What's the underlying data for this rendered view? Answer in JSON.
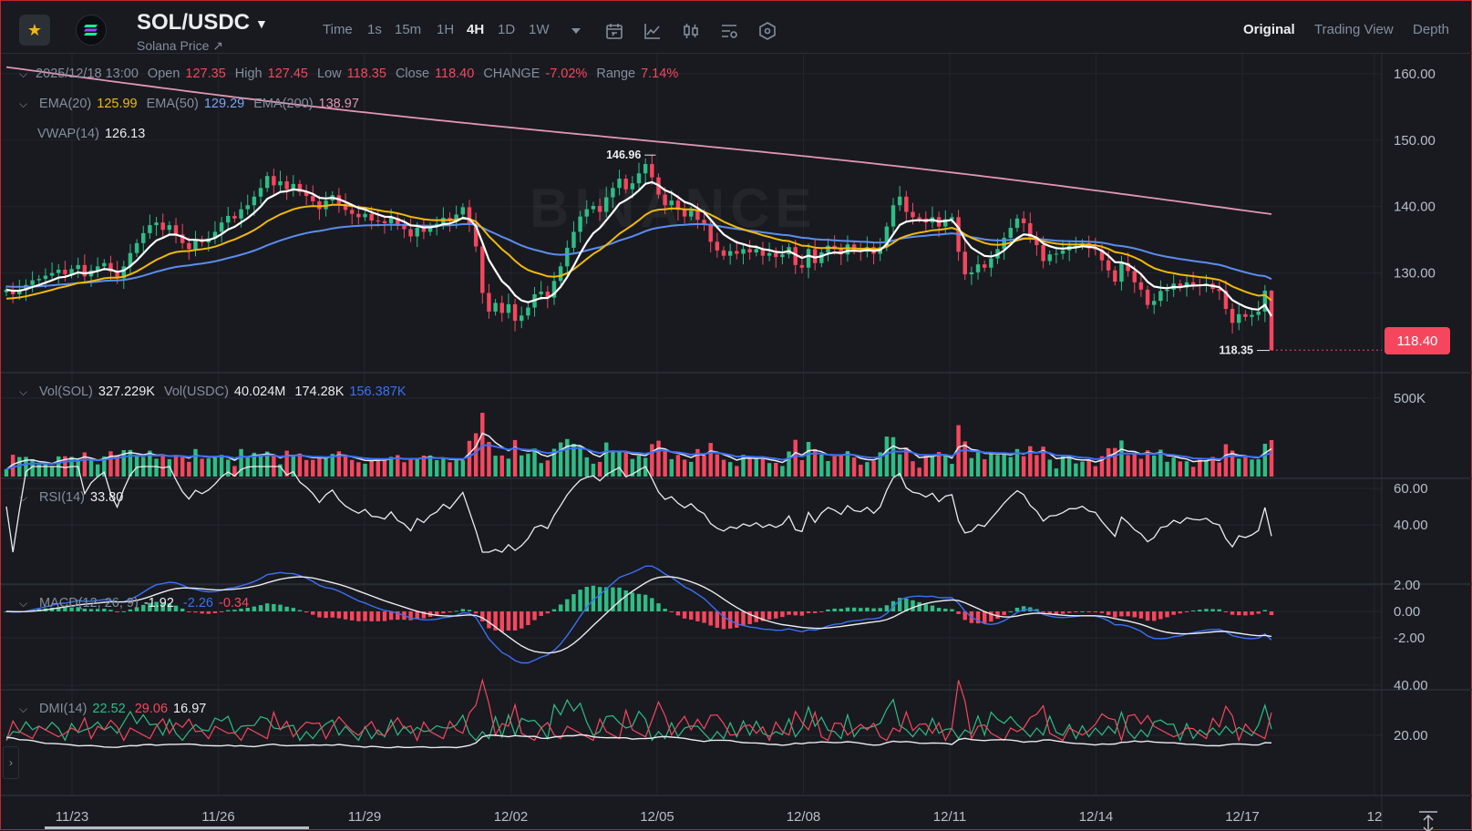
{
  "header": {
    "pair": "SOL/USDC",
    "subtitle": "Solana Price ↗",
    "timeframes": [
      "Time",
      "1s",
      "15m",
      "1H",
      "4H",
      "1D",
      "1W"
    ],
    "active_timeframe": "4H",
    "view_tabs": [
      "Original",
      "Trading View",
      "Depth"
    ],
    "active_view": "Original",
    "tools": [
      "dropdown-icon",
      "calendar-icon",
      "line-chart-icon",
      "candles-icon",
      "indicator-settings-icon",
      "hexagon-settings-icon"
    ]
  },
  "ohlc": {
    "date": "2025/12/18 13:00",
    "open_label": "Open",
    "open": "127.35",
    "high_label": "High",
    "high": "127.45",
    "low_label": "Low",
    "low": "118.35",
    "close_label": "Close",
    "close": "118.40",
    "change_label": "CHANGE",
    "change": "-7.02%",
    "range_label": "Range",
    "range": "7.14%"
  },
  "ema": {
    "l20": "EMA(20)",
    "v20": "125.99",
    "l50": "EMA(50)",
    "v50": "129.29",
    "l200": "EMA(200)",
    "v200": "138.97"
  },
  "vwap": {
    "label": "VWAP(14)",
    "value": "126.13"
  },
  "vol": {
    "l1": "Vol(SOL)",
    "v1": "327.229K",
    "l2": "Vol(USDC)",
    "v2": "40.024M",
    "v3": "174.28K",
    "v4": "156.387K"
  },
  "rsi": {
    "label": "RSI(14)",
    "value": "33.80"
  },
  "macd": {
    "label": "MACD(12, 26, 9)",
    "v1": "-1.92",
    "v2": "-2.26",
    "v3": "-0.34"
  },
  "dmi": {
    "label": "DMI(14)",
    "v1": "22.52",
    "v2": "29.06",
    "v3": "16.97"
  },
  "price_tag": "118.40",
  "watermark": "BINANCE",
  "colors": {
    "up": "#2ebd85",
    "down": "#f6465d",
    "ema20": "#f0b90b",
    "ema50": "#5b8def",
    "ema200": "#e295b5",
    "vwap": "#ffffff",
    "background": "#181a20"
  },
  "chart_data": [
    {
      "type": "candlestick",
      "title": "SOL/USDC 4H",
      "y_ticks": [
        "160.00",
        "150.00",
        "140.00",
        "130.00"
      ],
      "ylim": [
        115,
        163
      ],
      "x_ticks": [
        "11/23",
        "11/26",
        "11/29",
        "12/02",
        "12/05",
        "12/08",
        "12/11",
        "12/14",
        "12/17",
        "12"
      ],
      "annotations": [
        {
          "text": "146.96",
          "kind": "high"
        },
        {
          "text": "118.35",
          "kind": "low"
        }
      ],
      "close_series": [
        127.5,
        126.8,
        127.4,
        128.2,
        128.9,
        129.1,
        129.6,
        130.0,
        130.5,
        129.8,
        130.6,
        131.2,
        129.5,
        130.4,
        131.0,
        131.5,
        130.2,
        129.2,
        131.0,
        133.0,
        134.5,
        136.0,
        137.2,
        137.6,
        136.5,
        137.2,
        135.8,
        134.5,
        133.6,
        135.0,
        134.6,
        135.2,
        136.2,
        137.6,
        138.6,
        138.2,
        139.6,
        140.2,
        141.5,
        142.8,
        144.6,
        143.2,
        143.8,
        142.6,
        143.4,
        142.2,
        141.6,
        140.8,
        139.6,
        140.9,
        141.7,
        140.4,
        139.5,
        138.9,
        138.4,
        138.9,
        137.9,
        137.8,
        137.5,
        138.3,
        137.1,
        136.6,
        135.5,
        136.8,
        136.2,
        137.0,
        137.4,
        138.3,
        137.8,
        138.8,
        139.9,
        137.5,
        134.0,
        127.0,
        124.2,
        125.5,
        124.0,
        125.3,
        122.8,
        123.6,
        124.8,
        126.8,
        127.2,
        126.3,
        128.8,
        131.0,
        133.8,
        136.2,
        138.5,
        139.6,
        140.1,
        139.2,
        141.4,
        142.8,
        144.2,
        142.6,
        143.5,
        145.0,
        146.4,
        144.4,
        141.8,
        140.2,
        140.9,
        139.5,
        138.5,
        139.4,
        138.0,
        137.2,
        134.7,
        133.4,
        132.6,
        133.3,
        132.9,
        133.6,
        133.1,
        133.6,
        132.6,
        133.0,
        132.4,
        132.8,
        133.9,
        131.2,
        130.8,
        133.6,
        131.5,
        133.1,
        134.1,
        133.6,
        132.8,
        134.3,
        133.4,
        133.2,
        133.9,
        132.9,
        133.9,
        137.0,
        140.2,
        141.5,
        139.2,
        138.4,
        138.2,
        137.6,
        138.4,
        137.0,
        138.1,
        138.4,
        133.2,
        129.8,
        130.1,
        131.3,
        130.8,
        132.2,
        133.6,
        135.3,
        136.8,
        138.2,
        137.5,
        135.4,
        134.2,
        131.8,
        132.8,
        132.9,
        133.4,
        134.1,
        134.1,
        134.5,
        133.7,
        133.5,
        131.9,
        130.4,
        128.7,
        131.5,
        130.3,
        128.6,
        127.5,
        125.2,
        125.8,
        127.3,
        127.5,
        128.4,
        127.8,
        128.6,
        128.3,
        128.2,
        128.4,
        127.6,
        127.3,
        124.6,
        122.5,
        123.8,
        123.4,
        123.7,
        124.2,
        127.35,
        118.4
      ]
    },
    {
      "type": "bar",
      "title": "Volume",
      "y_ticks": [
        "500K"
      ]
    },
    {
      "type": "line",
      "title": "RSI(14)",
      "y_ticks": [
        "60.00",
        "40.00"
      ]
    },
    {
      "type": "bar",
      "title": "MACD(12, 26, 9)",
      "y_ticks": [
        "2.00",
        "0.00",
        "-2.00"
      ]
    },
    {
      "type": "line",
      "title": "DMI(14)",
      "y_ticks": [
        "40.00",
        "20.00"
      ]
    }
  ]
}
